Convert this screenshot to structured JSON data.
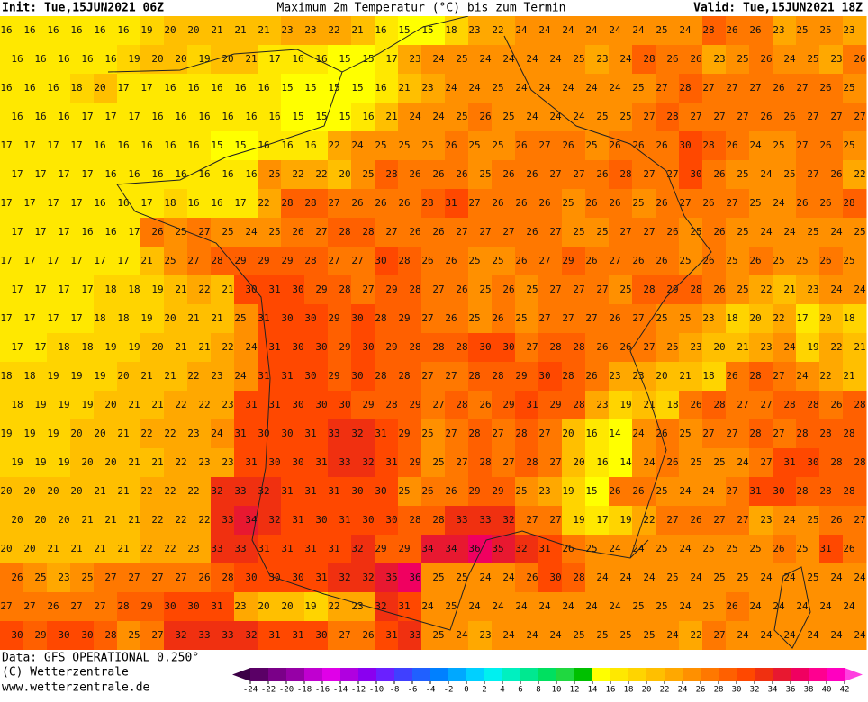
{
  "header": {
    "init": "Init: Tue,15JUN2021 06Z",
    "title": "Maximum 2m Temperatur (°C) bis zum Termin",
    "valid": "Valid: Tue,15JUN2021 18Z"
  },
  "grid": {
    "rows": [
      [
        16,
        16,
        16,
        16,
        16,
        16,
        19,
        20,
        20,
        21,
        21,
        21,
        23,
        23,
        22,
        21,
        16,
        15,
        15,
        18,
        23,
        22,
        24,
        24,
        24,
        24,
        24,
        24,
        25,
        24,
        28,
        26,
        26,
        23,
        25,
        25,
        23
      ],
      [
        16,
        16,
        16,
        16,
        16,
        19,
        20,
        20,
        19,
        20,
        21,
        17,
        16,
        16,
        15,
        15,
        17,
        23,
        24,
        25,
        24,
        24,
        24,
        24,
        25,
        23,
        24,
        28,
        26,
        26,
        23,
        25,
        26,
        24,
        25,
        23,
        26
      ],
      [
        16,
        16,
        16,
        18,
        20,
        17,
        17,
        16,
        16,
        16,
        16,
        16,
        15,
        15,
        15,
        15,
        16,
        21,
        23,
        24,
        24,
        25,
        24,
        24,
        24,
        24,
        24,
        25,
        27,
        28,
        27,
        27,
        27,
        26,
        27,
        26,
        25
      ],
      [
        16,
        16,
        16,
        17,
        17,
        17,
        16,
        16,
        16,
        16,
        16,
        16,
        15,
        15,
        15,
        16,
        21,
        24,
        24,
        25,
        26,
        25,
        24,
        24,
        24,
        25,
        25,
        27,
        28,
        27,
        27,
        27,
        26,
        26,
        27,
        27,
        27
      ],
      [
        17,
        17,
        17,
        17,
        16,
        16,
        16,
        16,
        16,
        15,
        15,
        16,
        16,
        16,
        22,
        24,
        25,
        25,
        25,
        26,
        25,
        25,
        26,
        27,
        26,
        25,
        26,
        26,
        26,
        30,
        28,
        26,
        24,
        25,
        27,
        26,
        25
      ],
      [
        17,
        17,
        17,
        17,
        16,
        16,
        16,
        16,
        16,
        16,
        16,
        25,
        22,
        22,
        20,
        25,
        28,
        26,
        26,
        26,
        25,
        26,
        26,
        27,
        27,
        26,
        28,
        27,
        27,
        30,
        26,
        25,
        24,
        25,
        27,
        26,
        22
      ],
      [
        17,
        17,
        17,
        17,
        16,
        16,
        17,
        18,
        16,
        16,
        17,
        22,
        28,
        28,
        27,
        26,
        26,
        26,
        28,
        31,
        27,
        26,
        26,
        26,
        25,
        26,
        26,
        25,
        26,
        27,
        26,
        27,
        25,
        24,
        26,
        26,
        28
      ],
      [
        17,
        17,
        17,
        16,
        16,
        17,
        26,
        25,
        27,
        25,
        24,
        25,
        26,
        27,
        28,
        28,
        27,
        26,
        26,
        27,
        27,
        27,
        26,
        27,
        25,
        25,
        27,
        27,
        26,
        25,
        26,
        25,
        24,
        24,
        25,
        24,
        25
      ],
      [
        17,
        17,
        17,
        17,
        17,
        17,
        21,
        25,
        27,
        28,
        29,
        29,
        29,
        28,
        27,
        27,
        30,
        28,
        26,
        26,
        25,
        25,
        26,
        27,
        29,
        26,
        27,
        26,
        26,
        25,
        26,
        25,
        26,
        25,
        25,
        26,
        25
      ],
      [
        17,
        17,
        17,
        17,
        18,
        18,
        19,
        21,
        22,
        21,
        30,
        31,
        30,
        29,
        28,
        27,
        29,
        28,
        27,
        26,
        25,
        26,
        25,
        27,
        27,
        27,
        25,
        28,
        29,
        28,
        26,
        25,
        22,
        21,
        23,
        24,
        24
      ],
      [
        17,
        17,
        17,
        17,
        18,
        18,
        19,
        20,
        21,
        21,
        25,
        31,
        30,
        30,
        29,
        30,
        28,
        29,
        27,
        26,
        25,
        26,
        25,
        27,
        27,
        27,
        26,
        27,
        25,
        25,
        23,
        18,
        20,
        22,
        17,
        20,
        18
      ],
      [
        17,
        17,
        18,
        18,
        19,
        19,
        20,
        21,
        21,
        22,
        24,
        31,
        30,
        30,
        29,
        30,
        29,
        28,
        28,
        28,
        30,
        30,
        27,
        28,
        28,
        26,
        26,
        27,
        25,
        23,
        20,
        21,
        23,
        24,
        19,
        22,
        21
      ],
      [
        18,
        18,
        19,
        19,
        19,
        20,
        21,
        21,
        22,
        23,
        24,
        31,
        31,
        30,
        29,
        30,
        28,
        28,
        27,
        27,
        28,
        28,
        29,
        30,
        28,
        26,
        23,
        23,
        20,
        21,
        18,
        26,
        28,
        27,
        24,
        22,
        21
      ],
      [
        18,
        19,
        19,
        19,
        20,
        21,
        21,
        22,
        22,
        23,
        31,
        31,
        30,
        30,
        30,
        29,
        28,
        29,
        27,
        28,
        26,
        29,
        31,
        29,
        28,
        23,
        19,
        21,
        18,
        26,
        28,
        27,
        27,
        28,
        28,
        26,
        28
      ],
      [
        19,
        19,
        19,
        20,
        20,
        21,
        22,
        22,
        23,
        24,
        31,
        30,
        30,
        31,
        33,
        32,
        31,
        29,
        25,
        27,
        28,
        27,
        28,
        27,
        20,
        16,
        14,
        24,
        26,
        25,
        27,
        27,
        28,
        27,
        28,
        28,
        28
      ],
      [
        19,
        19,
        19,
        20,
        20,
        21,
        21,
        22,
        23,
        23,
        31,
        30,
        30,
        31,
        33,
        32,
        31,
        29,
        25,
        27,
        28,
        27,
        28,
        27,
        20,
        16,
        14,
        24,
        26,
        25,
        25,
        24,
        27,
        31,
        30,
        28,
        28
      ],
      [
        20,
        20,
        20,
        20,
        21,
        21,
        22,
        22,
        22,
        32,
        33,
        32,
        31,
        31,
        31,
        30,
        30,
        25,
        26,
        26,
        29,
        29,
        25,
        23,
        19,
        15,
        26,
        26,
        25,
        24,
        24,
        27,
        31,
        30,
        28,
        28,
        28
      ],
      [
        20,
        20,
        20,
        21,
        21,
        21,
        22,
        22,
        22,
        33,
        34,
        32,
        31,
        30,
        31,
        30,
        30,
        28,
        28,
        33,
        33,
        32,
        27,
        27,
        19,
        17,
        19,
        22,
        27,
        26,
        27,
        27,
        23,
        24,
        25,
        26,
        27
      ],
      [
        20,
        20,
        21,
        21,
        21,
        21,
        22,
        22,
        23,
        33,
        33,
        31,
        31,
        31,
        31,
        32,
        29,
        29,
        34,
        34,
        36,
        35,
        32,
        31,
        26,
        25,
        24,
        24,
        25,
        24,
        25,
        25,
        25,
        26,
        25,
        31,
        26
      ],
      [
        26,
        25,
        23,
        25,
        27,
        27,
        27,
        27,
        26,
        28,
        30,
        30,
        30,
        31,
        32,
        32,
        35,
        36,
        25,
        25,
        24,
        24,
        26,
        30,
        28,
        24,
        24,
        24,
        25,
        24,
        25,
        25,
        24,
        24,
        25,
        24,
        24
      ],
      [
        27,
        27,
        26,
        27,
        27,
        28,
        29,
        30,
        30,
        31,
        23,
        20,
        20,
        19,
        22,
        23,
        32,
        31,
        24,
        25,
        24,
        24,
        24,
        24,
        24,
        24,
        24,
        25,
        25,
        24,
        25,
        26,
        24,
        24,
        24,
        24,
        24
      ],
      [
        30,
        29,
        30,
        30,
        28,
        25,
        27,
        32,
        33,
        33,
        32,
        31,
        31,
        30,
        27,
        26,
        31,
        33,
        25,
        24,
        23,
        24,
        24,
        24,
        25,
        25,
        25,
        25,
        24,
        22,
        27,
        24,
        24,
        24,
        24,
        24,
        24
      ]
    ]
  },
  "colorbar": {
    "ticks": [
      -24,
      -22,
      -20,
      -18,
      -16,
      -14,
      -12,
      -10,
      -8,
      -6,
      -4,
      -2,
      0,
      2,
      4,
      6,
      8,
      10,
      12,
      14,
      16,
      18,
      20,
      22,
      24,
      26,
      28,
      30,
      32,
      34,
      36,
      38,
      40,
      42
    ],
    "colors": [
      "#3c0046",
      "#5a0066",
      "#7a0088",
      "#9600a6",
      "#c000d0",
      "#e000e8",
      "#b000e0",
      "#8a00f0",
      "#6a20ff",
      "#4040ff",
      "#2060ff",
      "#0080ff",
      "#00a8ff",
      "#00d0ff",
      "#00f0f0",
      "#00f0c0",
      "#00e890",
      "#00e060",
      "#20d840",
      "#00c000",
      "#ffff00",
      "#ffe800",
      "#ffd400",
      "#ffbf00",
      "#ffa800",
      "#ff9000",
      "#ff7800",
      "#ff6000",
      "#ff4800",
      "#f03010",
      "#e81830",
      "#f00060",
      "#ff0090",
      "#ff00c0",
      "#ff40e0"
    ]
  },
  "footer": {
    "data": "Data: GFS OPERATIONAL 0.250°",
    "copyright": "(C) Wetterzentrale",
    "url": "www.wetterzentrale.de"
  }
}
